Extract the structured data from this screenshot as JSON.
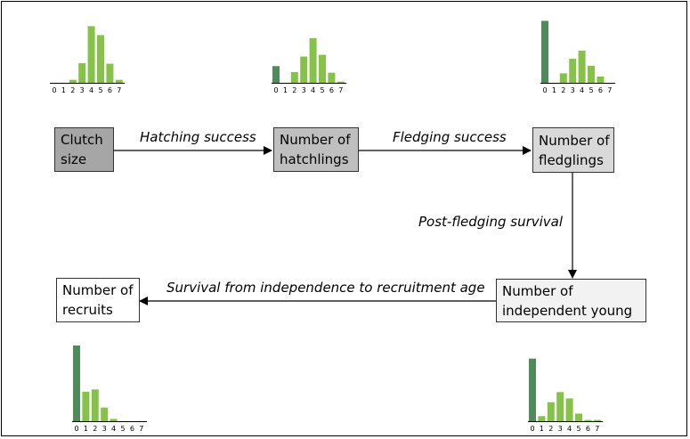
{
  "boxes": [
    {
      "id": "clutch-size",
      "lines": [
        "Clutch",
        "size"
      ],
      "fill": "#a6a6a6"
    },
    {
      "id": "hatchlings",
      "lines": [
        "Number of",
        "hatchlings"
      ],
      "fill": "#bfbfbf"
    },
    {
      "id": "fledglings",
      "lines": [
        "Number of",
        "fledglings"
      ],
      "fill": "#d9d9d9"
    },
    {
      "id": "independent-young",
      "lines": [
        "Number of",
        "independent young"
      ],
      "fill": "#f2f2f2"
    },
    {
      "id": "recruits",
      "lines": [
        "Number of",
        "recruits"
      ],
      "fill": "#ffffff"
    }
  ],
  "transitions": {
    "hatching": "Hatching success",
    "fledging": "Fledging success",
    "post_fledging": "Post-fledging survival",
    "recruitment": "Survival from independence to recruitment age"
  },
  "colors": {
    "zero_bar": "#4e8a5a",
    "bar": "#86c24a",
    "axis": "#000000"
  },
  "chart_data": [
    {
      "type": "bar",
      "id": "clutch-size-hist",
      "categories": [
        "0",
        "1",
        "2",
        "3",
        "4",
        "5",
        "6",
        "7"
      ],
      "values": [
        0,
        0,
        0.05,
        0.33,
        0.95,
        0.8,
        0.32,
        0.05
      ]
    },
    {
      "type": "bar",
      "id": "hatchlings-hist",
      "categories": [
        "0",
        "1",
        "2",
        "3",
        "4",
        "5",
        "6",
        "7"
      ],
      "values": [
        0.28,
        0,
        0.18,
        0.44,
        0.75,
        0.47,
        0.17,
        0.02
      ]
    },
    {
      "type": "bar",
      "id": "fledglings-hist",
      "categories": [
        "0",
        "1",
        "2",
        "3",
        "4",
        "5",
        "6",
        "7"
      ],
      "values": [
        0.98,
        0,
        0.15,
        0.38,
        0.51,
        0.27,
        0.1,
        0
      ]
    },
    {
      "type": "bar",
      "id": "recruits-hist",
      "categories": [
        "0",
        "1",
        "2",
        "3",
        "4",
        "5",
        "6",
        "7"
      ],
      "values": [
        1.0,
        0.39,
        0.42,
        0.18,
        0.03,
        0,
        0,
        0
      ]
    },
    {
      "type": "bar",
      "id": "independent-young-hist",
      "categories": [
        "0",
        "1",
        "2",
        "3",
        "4",
        "5",
        "6",
        "7"
      ],
      "values": [
        0.99,
        0.08,
        0.3,
        0.46,
        0.36,
        0.12,
        0.02,
        0.02
      ]
    }
  ]
}
